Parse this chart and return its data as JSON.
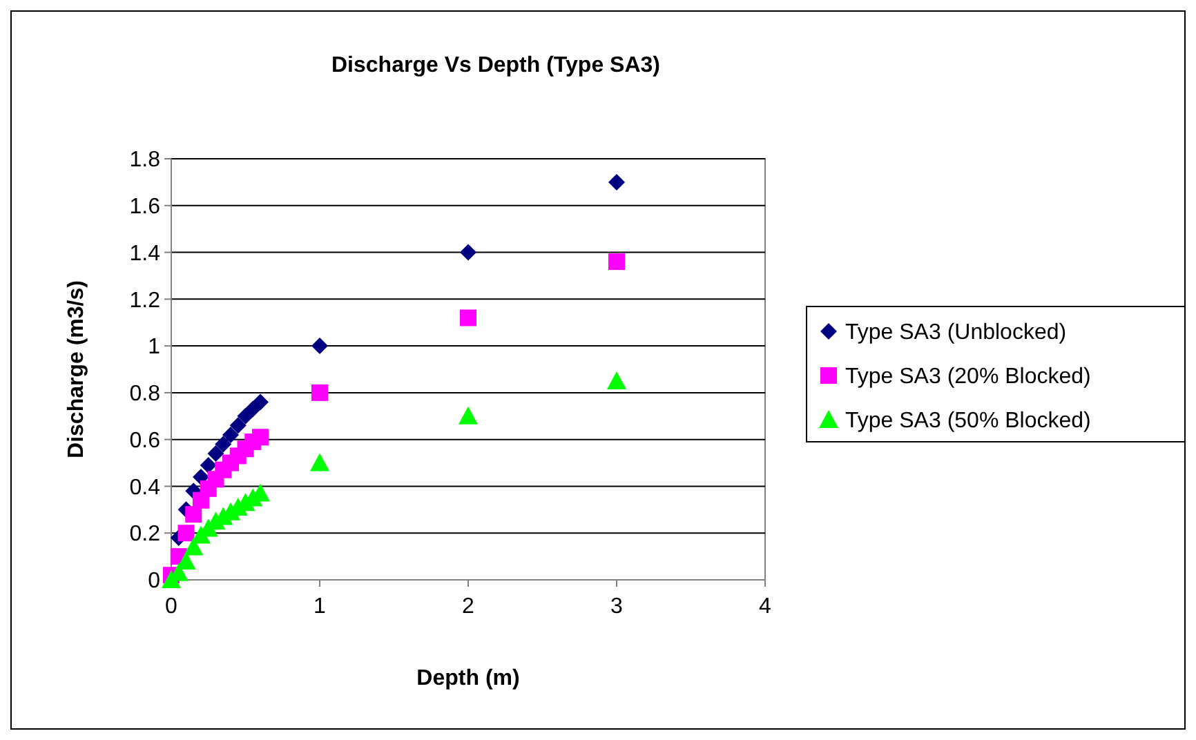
{
  "chart_data": {
    "type": "scatter",
    "title": "Discharge Vs Depth (Type SA3)",
    "xlabel": "Depth (m)",
    "ylabel": "Discharge (m3/s)",
    "x": [
      0,
      0.05,
      0.1,
      0.15,
      0.2,
      0.25,
      0.3,
      0.35,
      0.4,
      0.45,
      0.5,
      0.55,
      0.6,
      1,
      2,
      3
    ],
    "series": [
      {
        "name": "Type SA3 (Unblocked)",
        "color": "#000080",
        "marker": "diamond",
        "values": [
          null,
          0.18,
          0.3,
          0.38,
          0.44,
          0.49,
          0.54,
          0.58,
          0.62,
          0.66,
          0.7,
          0.73,
          0.76,
          1,
          1.4,
          1.7
        ]
      },
      {
        "name": "Type SA3 (20% Blocked)",
        "color": "#ff00ff",
        "marker": "square",
        "values": [
          0.02,
          0.1,
          0.2,
          0.28,
          0.34,
          0.39,
          0.43,
          0.47,
          0.5,
          0.53,
          0.56,
          0.59,
          0.61,
          0.8,
          1.12,
          1.36
        ]
      },
      {
        "name": "Type SA3 (50% Blocked)",
        "color": "#00ff00",
        "marker": "triangle",
        "values": [
          0,
          0.03,
          0.08,
          0.14,
          0.19,
          0.22,
          0.25,
          0.27,
          0.29,
          0.31,
          0.33,
          0.35,
          0.37,
          0.5,
          0.7,
          0.85
        ]
      }
    ],
    "xlim": [
      0,
      4
    ],
    "xticks": [
      0,
      1,
      2,
      3,
      4
    ],
    "ylim": [
      0,
      1.8
    ],
    "yticks": [
      0,
      0.2,
      0.4,
      0.6,
      0.8,
      1,
      1.2,
      1.4,
      1.6,
      1.8
    ],
    "grid": "y",
    "legend": "right"
  }
}
